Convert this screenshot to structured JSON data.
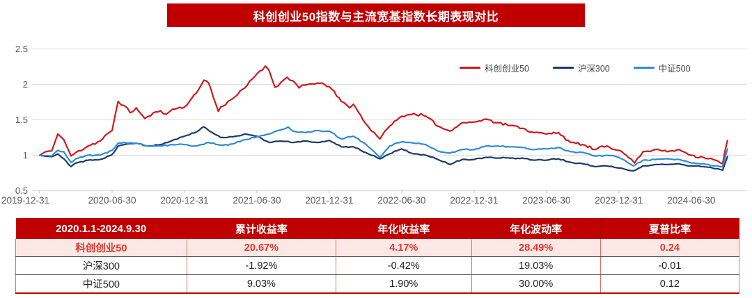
{
  "title": "科创创业50指数与主流宽基指数长期表现对比",
  "colors": {
    "banner_bg": "#c00000",
    "table_header_bg": "#c00000",
    "highlight_row_bg": "#fce8e4",
    "highlight_text": "#e5352b",
    "grid_line": "#dcdcdc",
    "axis_text": "#595959",
    "series_red": "#d0181c",
    "series_navy": "#1b3a68",
    "series_blue": "#2e8bd8"
  },
  "chart_data": {
    "type": "line",
    "title": "科创创业50指数与主流宽基指数长期表现对比",
    "grid": true,
    "legend_position": "top-right",
    "x_axis": {
      "start_date": "2019-12-31",
      "end_date": "2024-09-30",
      "range_months": [
        0,
        57
      ],
      "tick_months": [
        0,
        6,
        12,
        18,
        24,
        30,
        36,
        42,
        48,
        54
      ],
      "tick_labels": [
        "2019-12-31",
        "2020-06-30",
        "2020-12-31",
        "2021-06-30",
        "2021-12-31",
        "2022-06-30",
        "2022-12-31",
        "2023-06-30",
        "2023-12-31",
        "2024-06-30"
      ]
    },
    "y_axis": {
      "range": [
        0.5,
        2.5
      ],
      "ticks": [
        0.5,
        1,
        1.5,
        2,
        2.5
      ],
      "tick_labels": [
        "0.5",
        "1",
        "1.5",
        "2",
        "2.5"
      ]
    },
    "series": [
      {
        "name": "科创创业50",
        "color": "#d0181c",
        "points": [
          [
            0,
            1.0
          ],
          [
            0.5,
            1.05
          ],
          [
            1,
            1.06
          ],
          [
            1.5,
            1.3
          ],
          [
            2,
            1.22
          ],
          [
            2.6,
            0.99
          ],
          [
            3,
            1.04
          ],
          [
            4,
            1.13
          ],
          [
            5,
            1.2
          ],
          [
            6,
            1.35
          ],
          [
            6.5,
            1.76
          ],
          [
            7,
            1.7
          ],
          [
            7.5,
            1.6
          ],
          [
            8,
            1.67
          ],
          [
            8.7,
            1.52
          ],
          [
            9,
            1.55
          ],
          [
            10,
            1.63
          ],
          [
            10.5,
            1.58
          ],
          [
            11,
            1.65
          ],
          [
            12,
            1.68
          ],
          [
            13,
            1.88
          ],
          [
            13.6,
            2.06
          ],
          [
            14,
            2.02
          ],
          [
            14.8,
            1.62
          ],
          [
            15,
            1.68
          ],
          [
            16,
            1.8
          ],
          [
            17,
            1.95
          ],
          [
            18,
            2.15
          ],
          [
            18.7,
            2.26
          ],
          [
            19,
            2.2
          ],
          [
            19.5,
            1.96
          ],
          [
            20,
            2.03
          ],
          [
            20.5,
            2.1
          ],
          [
            21,
            2.05
          ],
          [
            21.5,
            1.95
          ],
          [
            22,
            1.99
          ],
          [
            23,
            2.02
          ],
          [
            24,
            1.97
          ],
          [
            25,
            1.76
          ],
          [
            25.7,
            1.67
          ],
          [
            26,
            1.72
          ],
          [
            27,
            1.45
          ],
          [
            28.2,
            1.23
          ],
          [
            29,
            1.41
          ],
          [
            30,
            1.55
          ],
          [
            31,
            1.59
          ],
          [
            32,
            1.55
          ],
          [
            33,
            1.41
          ],
          [
            34,
            1.34
          ],
          [
            35,
            1.46
          ],
          [
            36,
            1.47
          ],
          [
            37,
            1.51
          ],
          [
            38,
            1.46
          ],
          [
            39,
            1.42
          ],
          [
            40,
            1.38
          ],
          [
            41,
            1.32
          ],
          [
            42,
            1.3
          ],
          [
            43,
            1.32
          ],
          [
            44,
            1.18
          ],
          [
            45,
            1.15
          ],
          [
            46,
            1.08
          ],
          [
            47,
            1.13
          ],
          [
            48,
            1.07
          ],
          [
            49,
            0.95
          ],
          [
            49.3,
            0.89
          ],
          [
            50,
            1.05
          ],
          [
            51,
            1.08
          ],
          [
            52,
            1.05
          ],
          [
            53,
            1.08
          ],
          [
            54,
            1.0
          ],
          [
            55,
            0.97
          ],
          [
            56,
            0.93
          ],
          [
            56.6,
            0.88
          ],
          [
            57,
            1.21
          ]
        ]
      },
      {
        "name": "沪深300",
        "color": "#1b3a68",
        "points": [
          [
            0,
            1.0
          ],
          [
            1,
            0.98
          ],
          [
            1.5,
            1.02
          ],
          [
            2,
            0.95
          ],
          [
            2.6,
            0.84
          ],
          [
            3,
            0.89
          ],
          [
            4,
            0.93
          ],
          [
            5,
            0.94
          ],
          [
            6,
            1.01
          ],
          [
            6.5,
            1.13
          ],
          [
            7,
            1.15
          ],
          [
            8,
            1.17
          ],
          [
            9,
            1.13
          ],
          [
            10,
            1.15
          ],
          [
            11,
            1.21
          ],
          [
            12,
            1.27
          ],
          [
            13,
            1.33
          ],
          [
            13.6,
            1.4
          ],
          [
            14,
            1.35
          ],
          [
            15,
            1.25
          ],
          [
            16,
            1.26
          ],
          [
            17,
            1.3
          ],
          [
            18,
            1.27
          ],
          [
            19,
            1.18
          ],
          [
            20,
            1.2
          ],
          [
            21,
            1.18
          ],
          [
            22,
            1.2
          ],
          [
            23,
            1.18
          ],
          [
            24,
            1.21
          ],
          [
            25,
            1.12
          ],
          [
            26,
            1.12
          ],
          [
            27,
            1.04
          ],
          [
            28.2,
            0.95
          ],
          [
            29,
            1.02
          ],
          [
            30,
            1.09
          ],
          [
            31,
            1.02
          ],
          [
            32,
            1.0
          ],
          [
            33,
            0.94
          ],
          [
            34,
            0.87
          ],
          [
            35,
            0.94
          ],
          [
            36,
            0.94
          ],
          [
            37,
            0.97
          ],
          [
            38,
            0.96
          ],
          [
            39,
            0.96
          ],
          [
            40,
            0.96
          ],
          [
            41,
            0.93
          ],
          [
            42,
            0.93
          ],
          [
            43,
            0.95
          ],
          [
            44,
            0.9
          ],
          [
            45,
            0.88
          ],
          [
            46,
            0.84
          ],
          [
            47,
            0.85
          ],
          [
            48,
            0.82
          ],
          [
            49.2,
            0.78
          ],
          [
            50,
            0.85
          ],
          [
            51,
            0.87
          ],
          [
            52,
            0.87
          ],
          [
            53,
            0.88
          ],
          [
            54,
            0.85
          ],
          [
            55,
            0.84
          ],
          [
            56,
            0.81
          ],
          [
            56.6,
            0.79
          ],
          [
            57,
            0.98
          ]
        ]
      },
      {
        "name": "中证500",
        "color": "#2e8bd8",
        "points": [
          [
            0,
            1.0
          ],
          [
            1,
            0.99
          ],
          [
            1.5,
            1.07
          ],
          [
            2,
            1.05
          ],
          [
            2.6,
            0.9
          ],
          [
            3,
            0.95
          ],
          [
            4,
            1.0
          ],
          [
            5,
            1.0
          ],
          [
            6,
            1.07
          ],
          [
            6.5,
            1.17
          ],
          [
            7,
            1.18
          ],
          [
            8,
            1.17
          ],
          [
            9,
            1.13
          ],
          [
            10,
            1.13
          ],
          [
            11,
            1.15
          ],
          [
            12,
            1.15
          ],
          [
            13,
            1.13
          ],
          [
            14,
            1.18
          ],
          [
            15,
            1.14
          ],
          [
            16,
            1.16
          ],
          [
            17,
            1.22
          ],
          [
            18,
            1.26
          ],
          [
            19,
            1.3
          ],
          [
            20,
            1.36
          ],
          [
            20.6,
            1.4
          ],
          [
            21,
            1.34
          ],
          [
            22,
            1.32
          ],
          [
            23,
            1.35
          ],
          [
            24,
            1.34
          ],
          [
            25,
            1.23
          ],
          [
            26,
            1.27
          ],
          [
            27,
            1.16
          ],
          [
            28.2,
            0.97
          ],
          [
            29,
            1.13
          ],
          [
            30,
            1.19
          ],
          [
            31,
            1.17
          ],
          [
            32,
            1.15
          ],
          [
            33,
            1.06
          ],
          [
            34,
            1.03
          ],
          [
            35,
            1.08
          ],
          [
            36,
            1.08
          ],
          [
            37,
            1.13
          ],
          [
            38,
            1.13
          ],
          [
            39,
            1.12
          ],
          [
            40,
            1.11
          ],
          [
            41,
            1.08
          ],
          [
            42,
            1.09
          ],
          [
            43,
            1.11
          ],
          [
            44,
            1.05
          ],
          [
            45,
            1.04
          ],
          [
            46,
            0.99
          ],
          [
            47,
            1.0
          ],
          [
            48,
            0.97
          ],
          [
            49.2,
            0.85
          ],
          [
            50,
            0.93
          ],
          [
            51,
            0.94
          ],
          [
            52,
            0.95
          ],
          [
            53,
            0.94
          ],
          [
            54,
            0.89
          ],
          [
            55,
            0.88
          ],
          [
            56,
            0.85
          ],
          [
            56.6,
            0.84
          ],
          [
            57,
            1.09
          ]
        ]
      }
    ]
  },
  "table": {
    "header": [
      "2020.1.1-2024.9.30",
      "累计收益率",
      "年化收益率",
      "年化波动率",
      "夏普比率"
    ],
    "rows": [
      {
        "cells": [
          "科创创业50",
          "20.67%",
          "4.17%",
          "28.49%",
          "0.24"
        ],
        "highlight": true
      },
      {
        "cells": [
          "沪深300",
          "-1.92%",
          "-0.42%",
          "19.03%",
          "-0.01"
        ],
        "highlight": false
      },
      {
        "cells": [
          "中证500",
          "9.03%",
          "1.90%",
          "30.00%",
          "0.12"
        ],
        "highlight": false
      }
    ]
  }
}
